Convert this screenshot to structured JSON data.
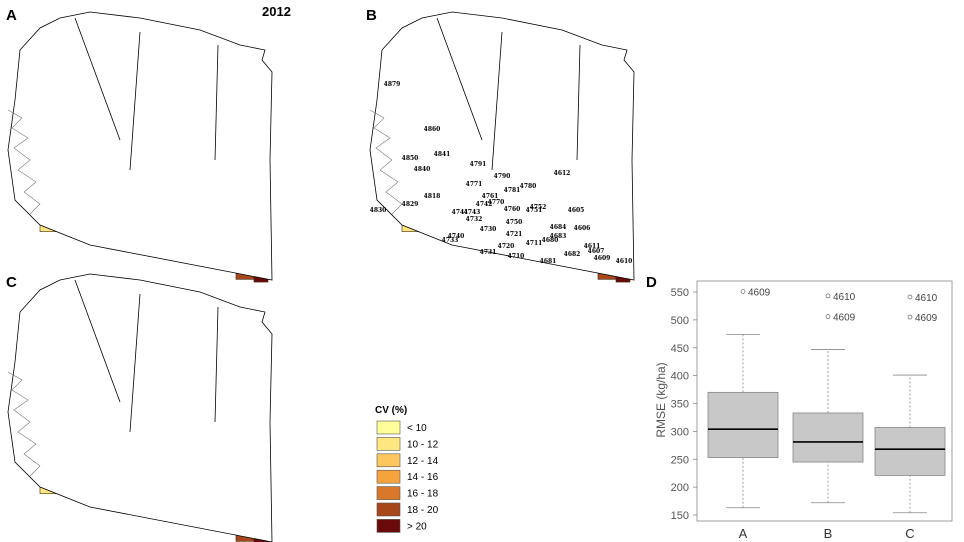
{
  "panels": {
    "a": "A",
    "b": "B",
    "c": "C",
    "d": "D"
  },
  "map_title": "2012",
  "map_b_labels": [
    "4879",
    "4860",
    "4850",
    "4841",
    "4840",
    "4830",
    "4829",
    "4818",
    "4791",
    "4790",
    "4781",
    "4780",
    "4771",
    "4770",
    "4761",
    "4760",
    "4752",
    "4751",
    "4750",
    "4743",
    "4742",
    "4741",
    "4740",
    "4733",
    "4732",
    "4731",
    "4730",
    "4721",
    "4720",
    "4711",
    "4710",
    "4684",
    "4683",
    "4682",
    "4681",
    "4680",
    "4612",
    "4611",
    "4610",
    "4609",
    "4607",
    "4606",
    "4605"
  ],
  "legend": {
    "title": "CV (%)",
    "items": [
      {
        "label": "< 10",
        "color": "#ffff99"
      },
      {
        "label": "10 - 12",
        "color": "#ffe680"
      },
      {
        "label": "12 - 14",
        "color": "#fdc75e"
      },
      {
        "label": "14 - 16",
        "color": "#f5a43d"
      },
      {
        "label": "16 - 18",
        "color": "#d9782a"
      },
      {
        "label": "18 - 20",
        "color": "#a8461c"
      },
      {
        "label": "> 20",
        "color": "#6b0a0a"
      }
    ]
  },
  "chart_data": {
    "type": "box",
    "categories": [
      "A",
      "B",
      "C"
    ],
    "ylabel": "RMSE (kg/ha)",
    "ylim": [
      140,
      560
    ],
    "yticks": [
      150,
      200,
      250,
      300,
      350,
      400,
      450,
      500,
      550
    ],
    "boxes": [
      {
        "category": "A",
        "whisker_low": 163,
        "q1": 253,
        "median": 304,
        "q3": 370,
        "whisker_high": 474,
        "outliers": [
          {
            "value": 551,
            "label": "4609"
          }
        ]
      },
      {
        "category": "B",
        "whisker_low": 172,
        "q1": 245,
        "median": 281,
        "q3": 333,
        "whisker_high": 447,
        "outliers": [
          {
            "value": 543,
            "label": "4610"
          },
          {
            "value": 506,
            "label": "4609"
          }
        ]
      },
      {
        "category": "C",
        "whisker_low": 154,
        "q1": 221,
        "median": 268,
        "q3": 307,
        "whisker_high": 401,
        "outliers": [
          {
            "value": 541,
            "label": "4610"
          },
          {
            "value": 505,
            "label": "4609"
          }
        ]
      }
    ]
  }
}
